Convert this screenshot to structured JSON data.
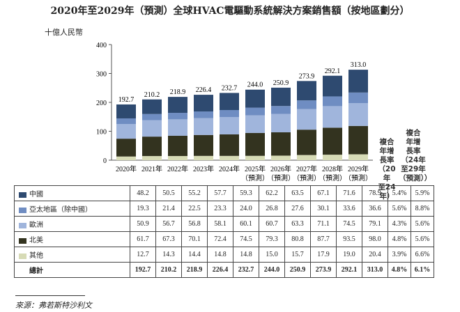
{
  "title": "2020年至2029年（預測）全球HVAC電驅動系統解決方案銷售額（按地區劃分）",
  "unit": "十億人民幣",
  "source": "來源：弗若斯特沙利文",
  "cagr_headers": [
    "複合年增長率（20年至24年）",
    "複合年增長率（24年至29年（預測））"
  ],
  "cagr_header_lines": [
    [
      "複合",
      "年增",
      "長率",
      "（20年",
      "至24年）"
    ],
    [
      "複合",
      "年增",
      "長率",
      "（24年",
      "至29年",
      "（預測））"
    ]
  ],
  "total_label": "總計",
  "chart_data": {
    "type": "bar",
    "stacked": true,
    "categories": [
      "2020年",
      "2021年",
      "2022年",
      "2023年",
      "2024年",
      "2025年",
      "2026年",
      "2027年",
      "2028年",
      "2029年"
    ],
    "category_sublabels": [
      "",
      "",
      "",
      "",
      "",
      "（預測）",
      "（預測）",
      "（預測）",
      "（預測）",
      "（預測）"
    ],
    "ylim": [
      0,
      400
    ],
    "yticks": [
      0,
      100,
      200,
      300,
      400
    ],
    "series": [
      {
        "name": "其他",
        "color": "#d7dbb6",
        "values": [
          12.7,
          14.3,
          14.4,
          14.8,
          14.8,
          15.0,
          15.7,
          17.9,
          19.0,
          20.4
        ],
        "cagr": [
          "3.9%",
          "6.6%"
        ]
      },
      {
        "name": "北美",
        "color": "#33331f",
        "values": [
          61.7,
          67.3,
          70.1,
          72.4,
          74.5,
          79.3,
          80.8,
          87.7,
          93.5,
          98.0
        ],
        "cagr": [
          "4.8%",
          "5.6%"
        ]
      },
      {
        "name": "歐洲",
        "color": "#a0b5dc",
        "values": [
          50.9,
          56.7,
          56.8,
          58.1,
          60.1,
          60.7,
          63.3,
          71.1,
          74.5,
          79.1
        ],
        "cagr": [
          "4.3%",
          "5.6%"
        ]
      },
      {
        "name": "亞太地區（除中國）",
        "color": "#6f8dc2",
        "values": [
          19.3,
          21.4,
          22.5,
          23.3,
          24.0,
          26.8,
          27.6,
          30.1,
          33.6,
          36.6
        ],
        "cagr": [
          "5.6%",
          "8.8%"
        ]
      },
      {
        "name": "中國",
        "color": "#2e4a70",
        "values": [
          48.2,
          50.5,
          55.2,
          57.7,
          59.3,
          62.2,
          63.5,
          67.1,
          71.6,
          78.9
        ],
        "cagr": [
          "5.4%",
          "5.9%"
        ]
      }
    ],
    "totals": [
      192.7,
      210.2,
      218.9,
      226.4,
      232.7,
      244.0,
      250.9,
      273.9,
      292.1,
      313.0
    ],
    "totals_label": [
      "192.7",
      "210.2",
      "218.9",
      "226.4",
      "232.7",
      "244.0",
      "250.9",
      "273.9",
      "292.1",
      "313.0"
    ],
    "total_cagr": [
      "4.8%",
      "6.1%"
    ]
  }
}
